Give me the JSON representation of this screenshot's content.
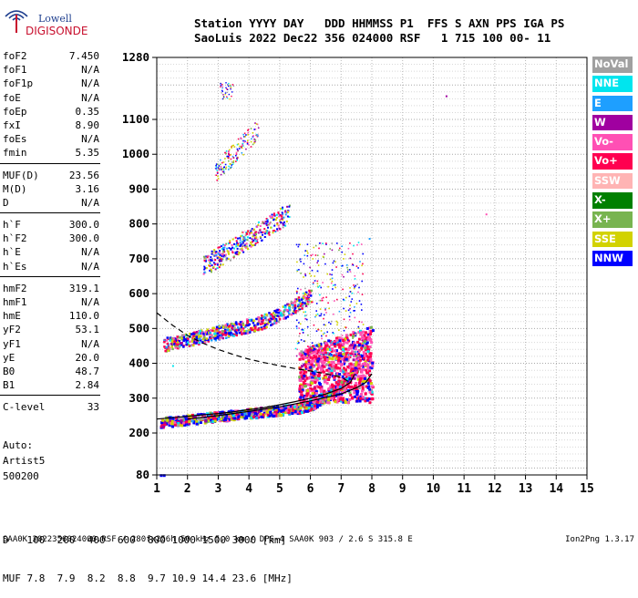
{
  "logo": {
    "line1": "Lowell",
    "line2": "DIGISONDE"
  },
  "header": {
    "line1": "Station YYYY DAY   DDD HHMMSS P1  FFS S AXN PPS IGA PS",
    "line2": "SaoLuis 2022 Dec22 356 024000 RSF   1 715 100 00- 11"
  },
  "params": {
    "group1": [
      {
        "name": "foF2",
        "value": "7.450"
      },
      {
        "name": "foF1",
        "value": "N/A"
      },
      {
        "name": "foF1p",
        "value": "N/A"
      },
      {
        "name": "foE",
        "value": "N/A"
      },
      {
        "name": "foEp",
        "value": "0.35"
      },
      {
        "name": "fxI",
        "value": "8.90"
      },
      {
        "name": "foEs",
        "value": "N/A"
      },
      {
        "name": "fmin",
        "value": "5.35"
      }
    ],
    "group2": [
      {
        "name": "MUF(D)",
        "value": "23.56"
      },
      {
        "name": "M(D)",
        "value": "3.16"
      },
      {
        "name": "D",
        "value": "N/A"
      }
    ],
    "group3": [
      {
        "name": "h`F",
        "value": "300.0"
      },
      {
        "name": "h`F2",
        "value": "300.0"
      },
      {
        "name": "h`E",
        "value": "N/A"
      },
      {
        "name": "h`Es",
        "value": "N/A"
      }
    ],
    "group4": [
      {
        "name": "hmF2",
        "value": "319.1"
      },
      {
        "name": "hmF1",
        "value": "N/A"
      },
      {
        "name": "hmE",
        "value": "110.0"
      },
      {
        "name": "yF2",
        "value": "53.1"
      },
      {
        "name": "yF1",
        "value": "N/A"
      },
      {
        "name": "yE",
        "value": "20.0"
      },
      {
        "name": "B0",
        "value": "48.7"
      },
      {
        "name": "B1",
        "value": "2.84"
      }
    ],
    "group5": [
      {
        "name": "C-level",
        "value": "33"
      }
    ]
  },
  "auto": {
    "line1": "Auto:",
    "line2": "Artist5",
    "line3": "500200"
  },
  "muf_table": {
    "d_label": "D",
    "d_values": "100  200  400  600  800 1000 1500 3000 [km]",
    "muf_label": "MUF",
    "muf_values": "7.8  7.9  8.2  8.8  9.7 10.9 14.4 23.6 [MHz]"
  },
  "footer": {
    "left": "SAA0K_2022356024000.RSF / 280fx256h 50 kHz 5.0 km / DPS-4 SAA0K 903 / 2.6 S 315.8 E",
    "right": "Ion2Png 1.3.17"
  },
  "legend": [
    {
      "label": "NoVal",
      "color": "#a0a0a0"
    },
    {
      "label": "NNE",
      "color": "#00e5ee"
    },
    {
      "label": "E",
      "color": "#1e9fff"
    },
    {
      "label": "W",
      "color": "#a000a0"
    },
    {
      "label": "Vo-",
      "color": "#ff50b4"
    },
    {
      "label": "Vo+",
      "color": "#ff0050"
    },
    {
      "label": "SSW",
      "color": "#ffb4b4"
    },
    {
      "label": "X-",
      "color": "#008000"
    },
    {
      "label": "X+",
      "color": "#78b450"
    },
    {
      "label": "SSE",
      "color": "#d2d200"
    },
    {
      "label": "NNW",
      "color": "#0000ff"
    }
  ],
  "chart_data": {
    "type": "scatter",
    "xlim": [
      1,
      15
    ],
    "ylim": [
      80,
      1280
    ],
    "x_ticks": [
      "1",
      "2",
      "3",
      "4",
      "5",
      "6",
      "7",
      "8",
      "9",
      "10",
      "11",
      "12",
      "13",
      "14",
      "15"
    ],
    "y_ticks": [
      "80",
      "200",
      "300",
      "400",
      "500",
      "600",
      "700",
      "800",
      "900",
      "1000",
      "1100",
      "1280"
    ],
    "grid": true,
    "traces": [
      {
        "name": "ordinary profile",
        "style": "solid",
        "x": [
          1.0,
          1.5,
          2.0,
          2.5,
          3.0,
          3.5,
          4.0,
          4.5,
          5.0,
          5.5,
          6.0,
          6.5,
          7.0,
          7.3,
          7.45
        ],
        "y": [
          240,
          244,
          248,
          252,
          256,
          261,
          267,
          273,
          281,
          290,
          300,
          312,
          328,
          345,
          370
        ]
      },
      {
        "name": "extraordinary profile",
        "style": "solid",
        "x": [
          2.0,
          3.0,
          4.0,
          5.0,
          6.0,
          7.0,
          7.5,
          7.8,
          8.0
        ],
        "y": [
          240,
          250,
          262,
          275,
          292,
          312,
          330,
          345,
          370
        ]
      },
      {
        "name": "E-trace",
        "style": "dashed",
        "x": [
          1.0,
          1.5,
          2.0,
          2.5,
          3.0,
          3.5,
          4.0,
          4.5,
          5.0,
          5.5,
          6.0,
          6.5,
          7.0,
          7.3
        ],
        "y": [
          545,
          510,
          480,
          458,
          440,
          425,
          412,
          402,
          393,
          385,
          378,
          370,
          360,
          345
        ]
      }
    ]
  }
}
